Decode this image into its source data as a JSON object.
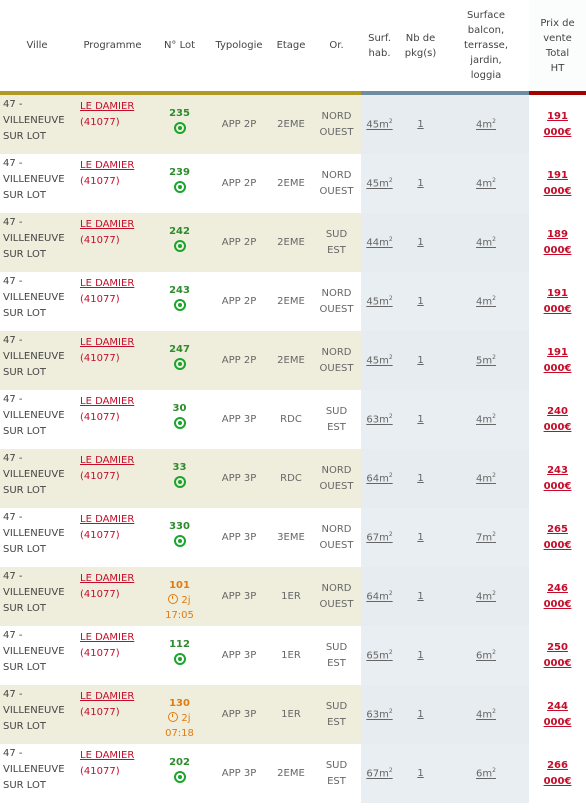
{
  "headers": {
    "ville": "Ville",
    "programme": "Programme",
    "lot": "N° Lot",
    "typologie": "Typologie",
    "etage": "Etage",
    "orientation": "Or.",
    "surf": [
      "Surf.",
      "hab."
    ],
    "parking": [
      "Nb de",
      "pkg(s)"
    ],
    "balcon": [
      "Surface",
      "balcon,",
      "terrasse,",
      "jardin,",
      "loggia"
    ],
    "prix": [
      "Prix de",
      "vente",
      "Total",
      "HT"
    ]
  },
  "colors": {
    "gold_bar": "#b09a22",
    "blue_bar": "#6f8ca3",
    "red_bar": "#a40000",
    "available_green": "#1aa52c",
    "reserved_orange": "#e07b13",
    "link_red": "#c50d2a"
  },
  "rows": [
    {
      "ville": [
        "47 -",
        "VILLENEUVE",
        "SUR LOT"
      ],
      "programme": "LE DAMIER",
      "code": "(41077)",
      "lot": "235",
      "status": "available",
      "status_icon": "available-dot-icon",
      "timer": "",
      "time": "",
      "typologie": "APP 2P",
      "etage": "2EME",
      "or1": "NORD",
      "or2": "OUEST",
      "surf": "45m",
      "pkg": "1",
      "balcon": "4m",
      "prix1": "191",
      "prix2": "000€"
    },
    {
      "ville": [
        "47 -",
        "VILLENEUVE",
        "SUR LOT"
      ],
      "programme": "LE DAMIER",
      "code": "(41077)",
      "lot": "239",
      "status": "available",
      "status_icon": "available-dot-icon",
      "timer": "",
      "time": "",
      "typologie": "APP 2P",
      "etage": "2EME",
      "or1": "NORD",
      "or2": "OUEST",
      "surf": "45m",
      "pkg": "1",
      "balcon": "4m",
      "prix1": "191",
      "prix2": "000€"
    },
    {
      "ville": [
        "47 -",
        "VILLENEUVE",
        "SUR LOT"
      ],
      "programme": "LE DAMIER",
      "code": "(41077)",
      "lot": "242",
      "status": "available",
      "status_icon": "available-dot-icon",
      "timer": "",
      "time": "",
      "typologie": "APP 2P",
      "etage": "2EME",
      "or1": "SUD",
      "or2": "EST",
      "surf": "44m",
      "pkg": "1",
      "balcon": "4m",
      "prix1": "189",
      "prix2": "000€"
    },
    {
      "ville": [
        "47 -",
        "VILLENEUVE",
        "SUR LOT"
      ],
      "programme": "LE DAMIER",
      "code": "(41077)",
      "lot": "243",
      "status": "available",
      "status_icon": "available-dot-icon",
      "timer": "",
      "time": "",
      "typologie": "APP 2P",
      "etage": "2EME",
      "or1": "NORD",
      "or2": "OUEST",
      "surf": "45m",
      "pkg": "1",
      "balcon": "4m",
      "prix1": "191",
      "prix2": "000€"
    },
    {
      "ville": [
        "47 -",
        "VILLENEUVE",
        "SUR LOT"
      ],
      "programme": "LE DAMIER",
      "code": "(41077)",
      "lot": "247",
      "status": "available",
      "status_icon": "available-dot-icon",
      "timer": "",
      "time": "",
      "typologie": "APP 2P",
      "etage": "2EME",
      "or1": "NORD",
      "or2": "OUEST",
      "surf": "45m",
      "pkg": "1",
      "balcon": "5m",
      "prix1": "191",
      "prix2": "000€"
    },
    {
      "ville": [
        "47 -",
        "VILLENEUVE",
        "SUR LOT"
      ],
      "programme": "LE DAMIER",
      "code": "(41077)",
      "lot": "30",
      "status": "available",
      "status_icon": "available-dot-icon",
      "timer": "",
      "time": "",
      "typologie": "APP 3P",
      "etage": "RDC",
      "or1": "SUD",
      "or2": "EST",
      "surf": "63m",
      "pkg": "1",
      "balcon": "4m",
      "prix1": "240",
      "prix2": "000€"
    },
    {
      "ville": [
        "47 -",
        "VILLENEUVE",
        "SUR LOT"
      ],
      "programme": "LE DAMIER",
      "code": "(41077)",
      "lot": "33",
      "status": "available",
      "status_icon": "available-dot-icon",
      "timer": "",
      "time": "",
      "typologie": "APP 3P",
      "etage": "RDC",
      "or1": "NORD",
      "or2": "OUEST",
      "surf": "64m",
      "pkg": "1",
      "balcon": "4m",
      "prix1": "243",
      "prix2": "000€"
    },
    {
      "ville": [
        "47 -",
        "VILLENEUVE",
        "SUR LOT"
      ],
      "programme": "LE DAMIER",
      "code": "(41077)",
      "lot": "330",
      "status": "available",
      "status_icon": "available-dot-icon",
      "timer": "",
      "time": "",
      "typologie": "APP 3P",
      "etage": "3EME",
      "or1": "NORD",
      "or2": "OUEST",
      "surf": "67m",
      "pkg": "1",
      "balcon": "7m",
      "prix1": "265",
      "prix2": "000€"
    },
    {
      "ville": [
        "47 -",
        "VILLENEUVE",
        "SUR LOT"
      ],
      "programme": "LE DAMIER",
      "code": "(41077)",
      "lot": "101",
      "status": "reserved",
      "status_icon": "timer-icon",
      "timer": "2j",
      "time": "17:05",
      "typologie": "APP 3P",
      "etage": "1ER",
      "or1": "NORD",
      "or2": "OUEST",
      "surf": "64m",
      "pkg": "1",
      "balcon": "4m",
      "prix1": "246",
      "prix2": "000€"
    },
    {
      "ville": [
        "47 -",
        "VILLENEUVE",
        "SUR LOT"
      ],
      "programme": "LE DAMIER",
      "code": "(41077)",
      "lot": "112",
      "status": "available",
      "status_icon": "available-dot-icon",
      "timer": "",
      "time": "",
      "typologie": "APP 3P",
      "etage": "1ER",
      "or1": "SUD",
      "or2": "EST",
      "surf": "65m",
      "pkg": "1",
      "balcon": "6m",
      "prix1": "250",
      "prix2": "000€"
    },
    {
      "ville": [
        "47 -",
        "VILLENEUVE",
        "SUR LOT"
      ],
      "programme": "LE DAMIER",
      "code": "(41077)",
      "lot": "130",
      "status": "reserved",
      "status_icon": "timer-icon",
      "timer": "2j",
      "time": "07:18",
      "typologie": "APP 3P",
      "etage": "1ER",
      "or1": "SUD",
      "or2": "EST",
      "surf": "63m",
      "pkg": "1",
      "balcon": "4m",
      "prix1": "244",
      "prix2": "000€"
    },
    {
      "ville": [
        "47 -",
        "VILLENEUVE",
        "SUR LOT"
      ],
      "programme": "LE DAMIER",
      "code": "(41077)",
      "lot": "202",
      "status": "available",
      "status_icon": "available-dot-icon",
      "timer": "",
      "time": "",
      "typologie": "APP 3P",
      "etage": "2EME",
      "or1": "SUD",
      "or2": "EST",
      "surf": "67m",
      "pkg": "1",
      "balcon": "6m",
      "prix1": "266",
      "prix2": "000€"
    }
  ]
}
